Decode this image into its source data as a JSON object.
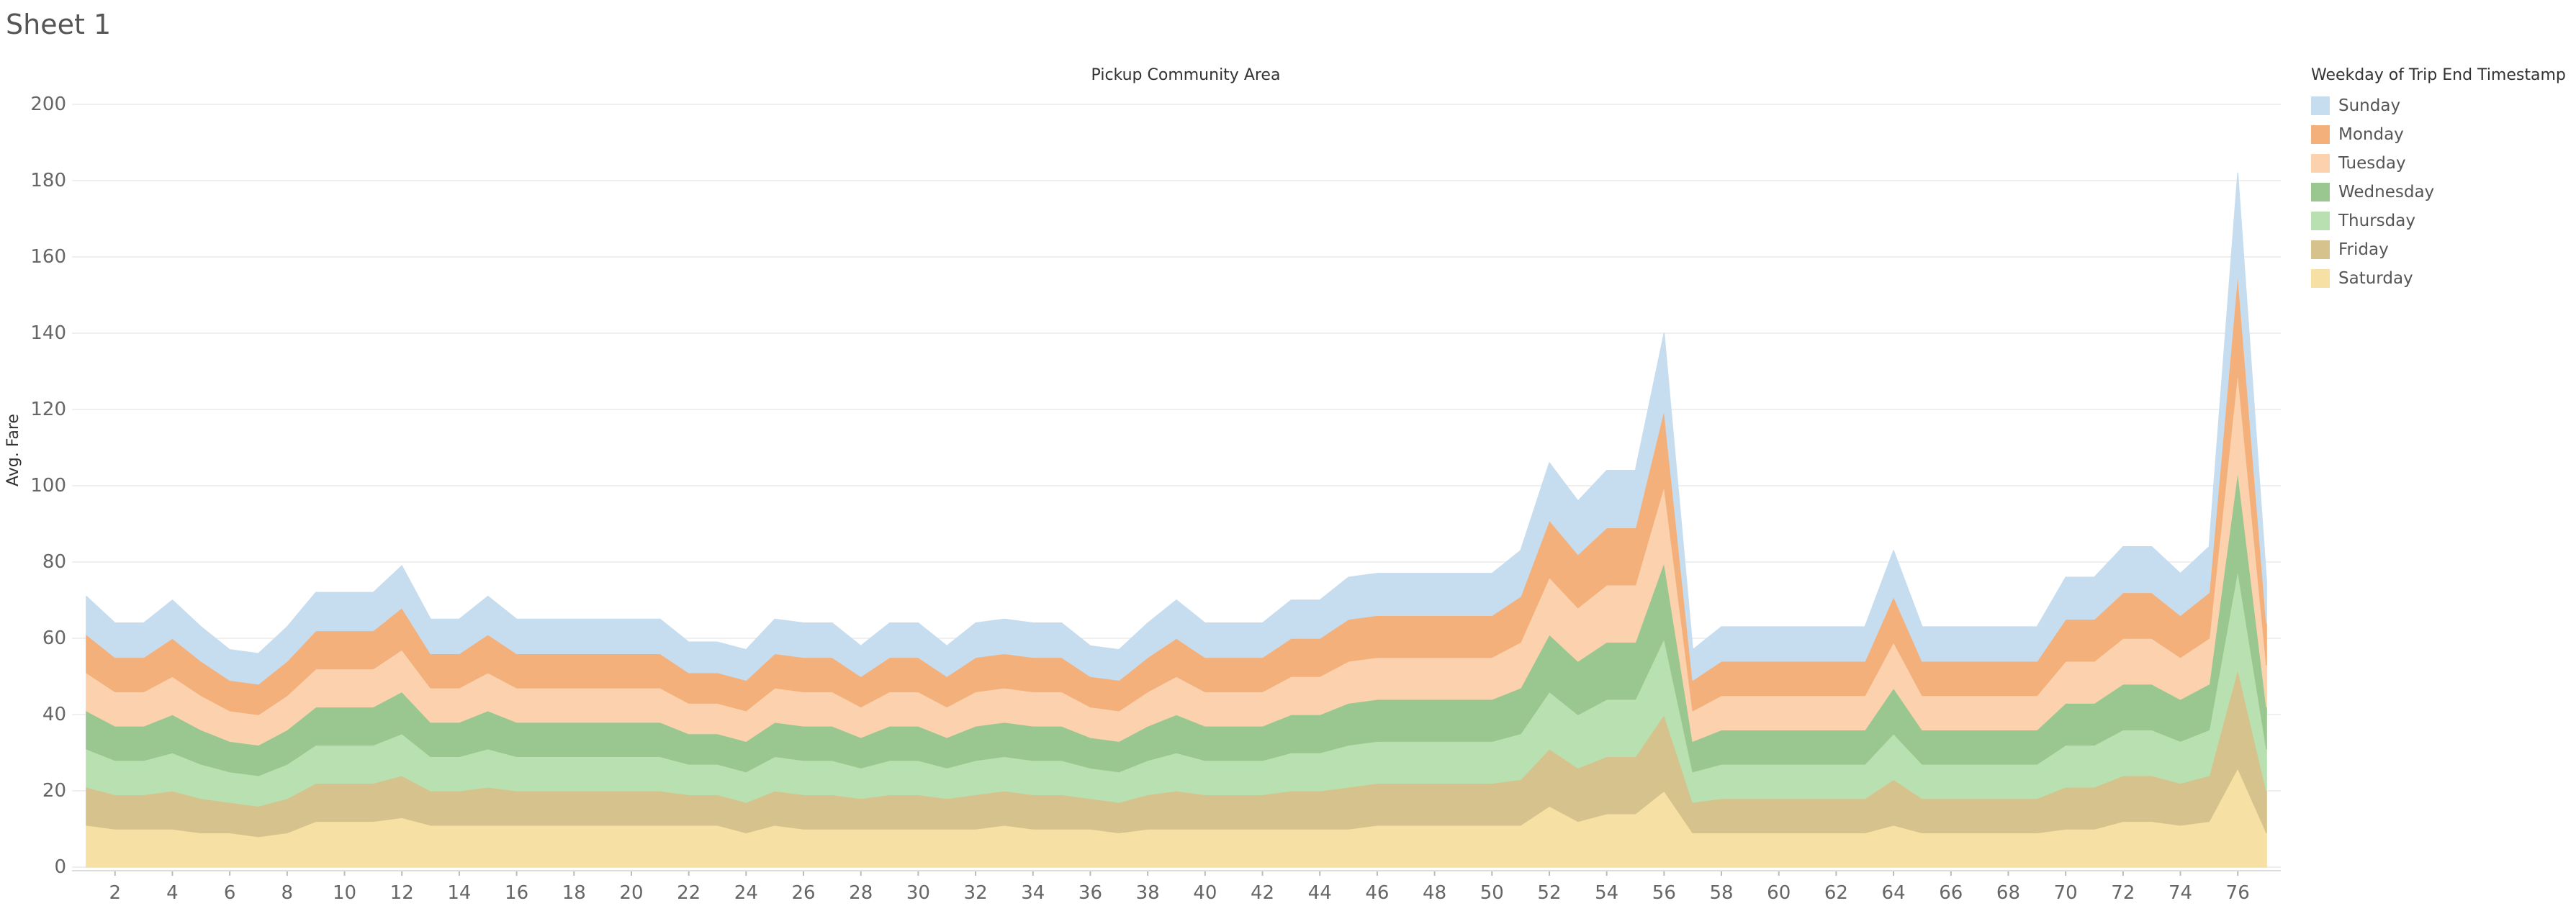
{
  "sheet_title": "Sheet 1",
  "chart_data": {
    "type": "area",
    "stacked": true,
    "title": "Pickup Community Area",
    "xlabel": "",
    "ylabel": "Avg. Fare",
    "x": [
      1,
      2,
      3,
      4,
      5,
      6,
      7,
      8,
      9,
      10,
      11,
      12,
      13,
      14,
      15,
      16,
      17,
      18,
      19,
      20,
      21,
      22,
      23,
      24,
      25,
      26,
      27,
      28,
      29,
      30,
      31,
      32,
      33,
      34,
      35,
      36,
      37,
      38,
      39,
      40,
      41,
      42,
      43,
      44,
      45,
      46,
      47,
      48,
      49,
      50,
      51,
      52,
      53,
      54,
      55,
      56,
      57,
      58,
      59,
      60,
      61,
      62,
      63,
      64,
      65,
      66,
      67,
      68,
      69,
      70,
      71,
      72,
      73,
      74,
      75,
      76,
      77
    ],
    "x_ticks": [
      2,
      4,
      6,
      8,
      10,
      12,
      14,
      16,
      18,
      20,
      22,
      24,
      26,
      28,
      30,
      32,
      34,
      36,
      38,
      40,
      42,
      44,
      46,
      48,
      50,
      52,
      54,
      56,
      58,
      60,
      62,
      64,
      66,
      68,
      70,
      72,
      74,
      76
    ],
    "y_ticks": [
      0,
      20,
      40,
      60,
      80,
      100,
      120,
      140,
      160,
      180,
      200
    ],
    "ylim": [
      0,
      200
    ],
    "xlim": [
      0.5,
      77.5
    ],
    "grid": true,
    "legend_title": "Weekday of Trip End Timestamp",
    "legend_position": "right",
    "series": [
      {
        "name": "Sunday",
        "color": "#c6dcef",
        "values": [
          10,
          9,
          9,
          10,
          9,
          8,
          8,
          9,
          10,
          10,
          10,
          11,
          9,
          9,
          10,
          9,
          9,
          9,
          9,
          9,
          9,
          8,
          8,
          8,
          9,
          9,
          9,
          8,
          9,
          9,
          8,
          9,
          9,
          9,
          9,
          8,
          8,
          9,
          10,
          9,
          9,
          9,
          10,
          10,
          11,
          11,
          11,
          11,
          11,
          11,
          12,
          15,
          14,
          15,
          15,
          20,
          8,
          9,
          9,
          9,
          9,
          9,
          9,
          12,
          9,
          9,
          9,
          9,
          9,
          11,
          11,
          12,
          12,
          11,
          12,
          26,
          11
        ]
      },
      {
        "name": "Monday",
        "color": "#f4b07a",
        "values": [
          10,
          9,
          9,
          10,
          9,
          8,
          8,
          9,
          10,
          10,
          10,
          11,
          9,
          9,
          10,
          9,
          9,
          9,
          9,
          9,
          9,
          8,
          8,
          8,
          9,
          9,
          9,
          8,
          9,
          9,
          8,
          9,
          9,
          9,
          9,
          8,
          8,
          9,
          10,
          9,
          9,
          9,
          10,
          10,
          11,
          11,
          11,
          11,
          11,
          11,
          12,
          15,
          14,
          15,
          15,
          20,
          8,
          9,
          9,
          9,
          9,
          9,
          9,
          12,
          9,
          9,
          9,
          9,
          9,
          11,
          11,
          12,
          12,
          11,
          12,
          26,
          11
        ]
      },
      {
        "name": "Tuesday",
        "color": "#fbd1ae",
        "values": [
          10,
          9,
          9,
          10,
          9,
          8,
          8,
          9,
          10,
          10,
          10,
          11,
          9,
          9,
          10,
          9,
          9,
          9,
          9,
          9,
          9,
          8,
          8,
          8,
          9,
          9,
          9,
          8,
          9,
          9,
          8,
          9,
          9,
          9,
          9,
          8,
          8,
          9,
          10,
          9,
          9,
          9,
          10,
          10,
          11,
          11,
          11,
          11,
          11,
          11,
          12,
          15,
          14,
          15,
          15,
          20,
          8,
          9,
          9,
          9,
          9,
          9,
          9,
          12,
          9,
          9,
          9,
          9,
          9,
          11,
          11,
          12,
          12,
          11,
          12,
          26,
          11
        ]
      },
      {
        "name": "Wednesday",
        "color": "#9ac78f",
        "values": [
          10,
          9,
          9,
          10,
          9,
          8,
          8,
          9,
          10,
          10,
          10,
          11,
          9,
          9,
          10,
          9,
          9,
          9,
          9,
          9,
          9,
          8,
          8,
          8,
          9,
          9,
          9,
          8,
          9,
          9,
          8,
          9,
          9,
          9,
          9,
          8,
          8,
          9,
          10,
          9,
          9,
          9,
          10,
          10,
          11,
          11,
          11,
          11,
          11,
          11,
          12,
          15,
          14,
          15,
          15,
          20,
          8,
          9,
          9,
          9,
          9,
          9,
          9,
          12,
          9,
          9,
          9,
          9,
          9,
          11,
          11,
          12,
          12,
          11,
          12,
          26,
          11
        ]
      },
      {
        "name": "Thursday",
        "color": "#b9e0b0",
        "values": [
          10,
          9,
          9,
          10,
          9,
          8,
          8,
          9,
          10,
          10,
          10,
          11,
          9,
          9,
          10,
          9,
          9,
          9,
          9,
          9,
          9,
          8,
          8,
          8,
          9,
          9,
          9,
          8,
          9,
          9,
          8,
          9,
          9,
          9,
          9,
          8,
          8,
          9,
          10,
          9,
          9,
          9,
          10,
          10,
          11,
          11,
          11,
          11,
          11,
          11,
          12,
          15,
          14,
          15,
          15,
          20,
          8,
          9,
          9,
          9,
          9,
          9,
          9,
          12,
          9,
          9,
          9,
          9,
          9,
          11,
          11,
          12,
          12,
          11,
          12,
          26,
          11
        ]
      },
      {
        "name": "Friday",
        "color": "#d6c28c",
        "values": [
          10,
          9,
          9,
          10,
          9,
          8,
          8,
          9,
          10,
          10,
          10,
          11,
          9,
          9,
          10,
          9,
          9,
          9,
          9,
          9,
          9,
          8,
          8,
          8,
          9,
          9,
          9,
          8,
          9,
          9,
          8,
          9,
          9,
          9,
          9,
          8,
          8,
          9,
          10,
          9,
          9,
          9,
          10,
          10,
          11,
          11,
          11,
          11,
          11,
          11,
          12,
          15,
          14,
          15,
          15,
          20,
          8,
          9,
          9,
          9,
          9,
          9,
          9,
          12,
          9,
          9,
          9,
          9,
          9,
          11,
          11,
          12,
          12,
          11,
          12,
          26,
          11
        ]
      },
      {
        "name": "Saturday",
        "color": "#f6e0a3",
        "values": [
          11,
          10,
          10,
          10,
          9,
          9,
          8,
          9,
          12,
          12,
          12,
          13,
          11,
          11,
          11,
          11,
          11,
          11,
          11,
          11,
          11,
          11,
          11,
          9,
          11,
          10,
          10,
          10,
          10,
          10,
          10,
          10,
          11,
          10,
          10,
          10,
          9,
          10,
          10,
          10,
          10,
          10,
          10,
          10,
          10,
          11,
          11,
          11,
          11,
          11,
          11,
          16,
          12,
          14,
          14,
          20,
          9,
          9,
          9,
          9,
          9,
          9,
          9,
          11,
          9,
          9,
          9,
          9,
          9,
          10,
          10,
          12,
          12,
          11,
          12,
          26,
          9
        ]
      }
    ]
  }
}
